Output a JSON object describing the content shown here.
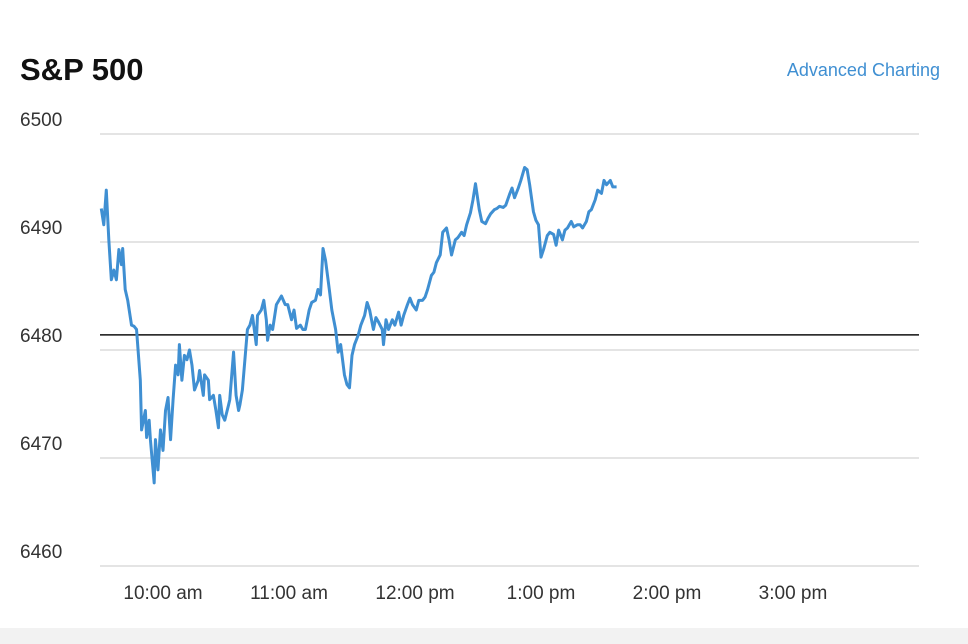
{
  "chart_data": {
    "type": "line",
    "title": "S&P 500",
    "link": "Advanced Charting",
    "color": "#3f8fd2",
    "baseline": 6481.4,
    "baseline_color": "#111111",
    "grid": true,
    "xlim": [
      9.5,
      16
    ],
    "xticks": [
      {
        "value": 10,
        "label": "10:00 am"
      },
      {
        "value": 11,
        "label": "11:00 am"
      },
      {
        "value": 12,
        "label": "12:00 pm"
      },
      {
        "value": 13,
        "label": "1:00 pm"
      },
      {
        "value": 14,
        "label": "2:00 pm"
      },
      {
        "value": 15,
        "label": "3:00 pm"
      }
    ],
    "ylim": [
      6460,
      6500
    ],
    "yticks": [
      6460,
      6470,
      6480,
      6490,
      6500
    ],
    "x": [
      9.51,
      9.53,
      9.55,
      9.57,
      9.59,
      9.61,
      9.63,
      9.65,
      9.67,
      9.68,
      9.7,
      9.72,
      9.75,
      9.77,
      9.79,
      9.82,
      9.83,
      9.86,
      9.87,
      9.89,
      9.9,
      9.93,
      9.94,
      9.96,
      9.98,
      10.0,
      10.02,
      10.04,
      10.06,
      10.08,
      10.1,
      10.12,
      10.13,
      10.15,
      10.17,
      10.19,
      10.21,
      10.23,
      10.25,
      10.28,
      10.29,
      10.32,
      10.33,
      10.36,
      10.37,
      10.4,
      10.42,
      10.44,
      10.45,
      10.47,
      10.49,
      10.52,
      10.53,
      10.56,
      10.58,
      10.6,
      10.61,
      10.63,
      10.65,
      10.67,
      10.69,
      10.71,
      10.74,
      10.75,
      10.78,
      10.8,
      10.82,
      10.83,
      10.85,
      10.87,
      10.9,
      10.92,
      10.94,
      10.97,
      10.99,
      11.02,
      11.04,
      11.06,
      11.09,
      11.11,
      11.13,
      11.16,
      11.18,
      11.21,
      11.23,
      11.25,
      11.27,
      11.29,
      11.32,
      11.34,
      11.37,
      11.39,
      11.41,
      11.44,
      11.46,
      11.48,
      11.5,
      11.52,
      11.55,
      11.57,
      11.6,
      11.62,
      11.64,
      11.67,
      11.69,
      11.71,
      11.74,
      11.75,
      11.77,
      11.79,
      11.82,
      11.84,
      11.87,
      11.89,
      11.91,
      11.94,
      11.96,
      11.98,
      12.01,
      12.03,
      12.06,
      12.08,
      12.1,
      12.13,
      12.15,
      12.17,
      12.2,
      12.22,
      12.25,
      12.27,
      12.29,
      12.32,
      12.34,
      12.37,
      12.39,
      12.41,
      12.44,
      12.46,
      12.48,
      12.51,
      12.53,
      12.56,
      12.58,
      12.6,
      12.63,
      12.65,
      12.67,
      12.7,
      12.72,
      12.75,
      12.77,
      12.79,
      12.82,
      12.84,
      12.87,
      12.89,
      12.91,
      12.94,
      12.96,
      12.98,
      13.0,
      13.02,
      13.05,
      13.07,
      13.1,
      13.12,
      13.14,
      13.17,
      13.19,
      13.21,
      13.24,
      13.26,
      13.29,
      13.31,
      13.33,
      13.36,
      13.38,
      13.4,
      13.43,
      13.45,
      13.48,
      13.5,
      13.52,
      13.55,
      13.57,
      13.6
    ],
    "values": [
      6493.1,
      6491.6,
      6494.8,
      6490.2,
      6486.5,
      6487.4,
      6486.5,
      6489.3,
      6487.9,
      6489.4,
      6485.6,
      6484.6,
      6482.3,
      6482.2,
      6481.9,
      6477.2,
      6472.6,
      6474.4,
      6471.9,
      6473.5,
      6471.7,
      6467.7,
      6471.7,
      6468.9,
      6472.6,
      6470.7,
      6474.4,
      6475.6,
      6471.7,
      6475.4,
      6478.6,
      6477.7,
      6480.5,
      6477.2,
      6479.5,
      6479.1,
      6480.0,
      6478.6,
      6476.3,
      6477.2,
      6478.1,
      6475.8,
      6477.7,
      6477.2,
      6475.4,
      6475.8,
      6474.4,
      6472.8,
      6475.8,
      6474.0,
      6473.5,
      6474.9,
      6475.4,
      6479.8,
      6475.8,
      6474.4,
      6474.9,
      6476.3,
      6479.1,
      6481.9,
      6482.3,
      6483.2,
      6480.5,
      6483.2,
      6483.7,
      6484.6,
      6482.8,
      6480.9,
      6482.3,
      6481.9,
      6484.2,
      6484.6,
      6485.0,
      6484.2,
      6484.2,
      6482.8,
      6483.7,
      6482.0,
      6482.3,
      6481.9,
      6481.9,
      6483.7,
      6484.4,
      6484.6,
      6485.6,
      6485.1,
      6489.4,
      6488.3,
      6485.6,
      6483.7,
      6481.9,
      6479.8,
      6480.5,
      6477.7,
      6476.8,
      6476.5,
      6479.5,
      6480.5,
      6481.4,
      6482.3,
      6483.2,
      6484.4,
      6483.7,
      6481.9,
      6483.0,
      6482.6,
      6481.9,
      6480.5,
      6482.8,
      6481.9,
      6482.8,
      6482.3,
      6483.5,
      6482.3,
      6483.2,
      6484.2,
      6484.8,
      6484.2,
      6483.7,
      6484.6,
      6484.6,
      6484.9,
      6485.6,
      6486.9,
      6487.2,
      6488.1,
      6488.8,
      6490.9,
      6491.3,
      6490.2,
      6488.8,
      6490.2,
      6490.4,
      6490.9,
      6490.6,
      6491.6,
      6492.7,
      6493.9,
      6495.4,
      6493.0,
      6491.9,
      6491.7,
      6492.2,
      6492.6,
      6493.0,
      6493.1,
      6493.3,
      6493.2,
      6493.4,
      6494.4,
      6495.0,
      6494.1,
      6495.0,
      6495.7,
      6496.9,
      6496.7,
      6495.3,
      6492.8,
      6492.0,
      6491.6,
      6488.6,
      6489.3,
      6490.6,
      6490.9,
      6490.7,
      6489.7,
      6491.1,
      6490.2,
      6491.1,
      6491.3,
      6491.9,
      6491.4,
      6491.6,
      6491.6,
      6491.3,
      6491.9,
      6492.8,
      6493.0,
      6493.9,
      6494.8,
      6494.5,
      6495.7,
      6495.3,
      6495.7,
      6495.1,
      6495.1
    ]
  }
}
